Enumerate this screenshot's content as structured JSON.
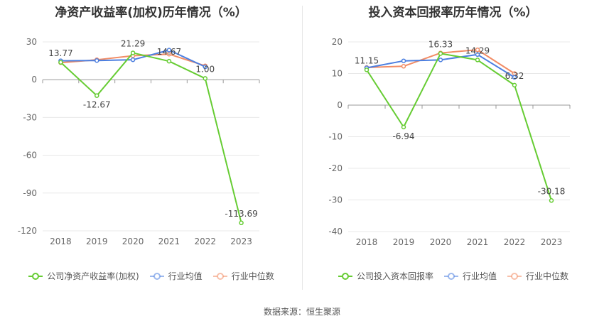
{
  "source_label": "数据来源：恒生聚源",
  "chart_data": [
    {
      "type": "line",
      "title": "净资产收益率(加权)历年情况（%）",
      "categories": [
        "2018",
        "2019",
        "2020",
        "2021",
        "2022",
        "2023"
      ],
      "ylim": [
        -120,
        30
      ],
      "yticks": [
        "30",
        "0",
        "-30",
        "-60",
        "-90",
        "-120"
      ],
      "grid": true,
      "legend_position": "bottom",
      "series": [
        {
          "name": "公司净资产收益率(加权)",
          "color": "#66cc33",
          "values": [
            13.77,
            -12.67,
            21.29,
            14.67,
            1.0,
            -113.69
          ],
          "labels": [
            "13.77",
            "-12.67",
            "21.29",
            "14.67",
            "1.00",
            "-113.69"
          ]
        },
        {
          "name": "行业均值",
          "color": "#4c7fe0",
          "values": [
            15.0,
            15.2,
            15.8,
            23.5,
            10.2,
            null
          ]
        },
        {
          "name": "行业中位数",
          "color": "#f28c65",
          "values": [
            13.5,
            15.8,
            19.0,
            20.3,
            11.0,
            null
          ]
        }
      ]
    },
    {
      "type": "line",
      "title": "投入资本回报率历年情况（%）",
      "categories": [
        "2018",
        "2019",
        "2020",
        "2021",
        "2022",
        "2023"
      ],
      "ylim": [
        -40,
        20
      ],
      "yticks": [
        "20",
        "10",
        "0",
        "-10",
        "-20",
        "-30",
        "-40"
      ],
      "grid": true,
      "legend_position": "bottom",
      "series": [
        {
          "name": "公司投入资本回报率",
          "color": "#66cc33",
          "values": [
            11.15,
            -6.94,
            16.33,
            14.29,
            6.32,
            -30.18
          ],
          "labels": [
            "11.15",
            "-6.94",
            "16.33",
            "14.29",
            "6.32",
            "-30.18"
          ]
        },
        {
          "name": "行业均值",
          "color": "#4c7fe0",
          "values": [
            11.8,
            14.0,
            14.3,
            16.0,
            8.8,
            null
          ]
        },
        {
          "name": "行业中位数",
          "color": "#f28c65",
          "values": [
            11.9,
            12.3,
            16.5,
            17.5,
            10.0,
            null
          ]
        }
      ]
    }
  ]
}
